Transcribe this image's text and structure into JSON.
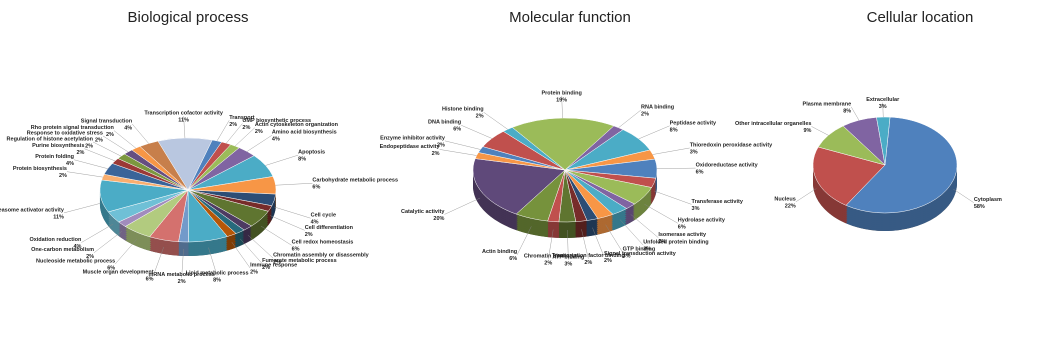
{
  "chart_data": [
    {
      "type": "pie",
      "title": "Biological process",
      "categories": [
        "Transcription cofactor activity",
        "Transport",
        "UMP biosynthetic process",
        "Actin cytoskeleton organization",
        "Amino acid biosynthesis",
        "Apoptosis",
        "Carbohydrate metabolic process",
        "Cell cycle",
        "Cell differentiation",
        "Cell redox homeostasis",
        "Chromatin assembly or disassembly",
        "Fumarate metabolic process",
        "Immune response",
        "Lipid metabolic process",
        "mRNA metabolic process",
        "Muscle organ development",
        "Nucleoside metabolic process",
        "One-carbon metabolism",
        "Oxidation reduction",
        "Proteasome activator activity",
        "Protein biosynthesis",
        "Protein folding",
        "Purine biosynthesis",
        "Regulation of histone acetylation",
        "Response to oxidative stress",
        "Rho protein signal transduction",
        "Signal transduction"
      ],
      "values": [
        11,
        2,
        2,
        2,
        4,
        8,
        6,
        4,
        2,
        6,
        2,
        2,
        2,
        8,
        2,
        6,
        6,
        2,
        4,
        11,
        2,
        4,
        2,
        2,
        2,
        2,
        4
      ],
      "value_labels": [
        "11%",
        "2%",
        "2%",
        "2%",
        "4%",
        "8%",
        "6%",
        "4%",
        "2%",
        "6%",
        "2%",
        "2%",
        "2%",
        "8%",
        "2%",
        "6%",
        "6%",
        "2%",
        "4%",
        "11%",
        "2%",
        "4%",
        "2%",
        "2%",
        "2%",
        "2%",
        "4%"
      ],
      "colors": [
        "#b9c7e0",
        "#4f81bd",
        "#c0504d",
        "#9bbb59",
        "#8064a2",
        "#4bacc6",
        "#f79646",
        "#2c4d75",
        "#772c2a",
        "#5f7530",
        "#4d3b62",
        "#276a7c",
        "#b65708",
        "#4bacc6",
        "#729aca",
        "#d4716e",
        "#b2cb7f",
        "#a18cbd",
        "#6fc0d6",
        "#4bacc6",
        "#f9ae6f",
        "#3a6499",
        "#9b3936",
        "#7c983f",
        "#654e81",
        "#f79646",
        "#c77f4b"
      ]
    },
    {
      "type": "pie",
      "title": "Molecular function",
      "categories": [
        "Protein binding",
        "RNA binding",
        "Peptidase activity",
        "Thioredoxin peroxidase activity",
        "Oxidoreductase activity",
        "Transferase activity",
        "Hydrolase activity",
        "Isomerase activity",
        "Unfolded protein binding",
        "GTP binding",
        "Signal transduction activity",
        "Transcription factor binding",
        "ATP binding",
        "Chromatin binding",
        "Actin binding",
        "Catalytic activity",
        "Endopeptidase activity",
        "Enzyme inhibitor activity",
        "DNA binding",
        "Histone binding"
      ],
      "values": [
        19,
        2,
        8,
        3,
        6,
        3,
        6,
        2,
        3,
        3,
        2,
        2,
        3,
        2,
        6,
        20,
        2,
        2,
        6,
        2
      ],
      "value_labels": [
        "19%",
        "2%",
        "8%",
        "3%",
        "6%",
        "3%",
        "6%",
        "2%",
        "3%",
        "3%",
        "2%",
        "2%",
        "3%",
        "2%",
        "6%",
        "20%",
        "2%",
        "2%",
        "6%",
        "2%"
      ],
      "colors": [
        "#9bbb59",
        "#8064a2",
        "#4bacc6",
        "#f79646",
        "#4f81bd",
        "#c0504d",
        "#9bbb59",
        "#8064a2",
        "#4bacc6",
        "#f79646",
        "#2c4d75",
        "#772c2a",
        "#5f7530",
        "#c0504d",
        "#76923c",
        "#5f497a",
        "#f79646",
        "#4f81bd",
        "#c0504d",
        "#4bacc6"
      ]
    },
    {
      "type": "pie",
      "title": "Cellular location",
      "categories": [
        "Cytoplasm",
        "Nucleus",
        "Other intracellular organelles",
        "Plasma membrane",
        "Extracellular"
      ],
      "values": [
        58,
        22,
        9,
        8,
        3
      ],
      "value_labels": [
        "58%",
        "22%",
        "9%",
        "8%",
        "3%"
      ],
      "colors": [
        "#4f81bd",
        "#c0504d",
        "#9bbb59",
        "#8064a2",
        "#4bacc6"
      ]
    }
  ]
}
